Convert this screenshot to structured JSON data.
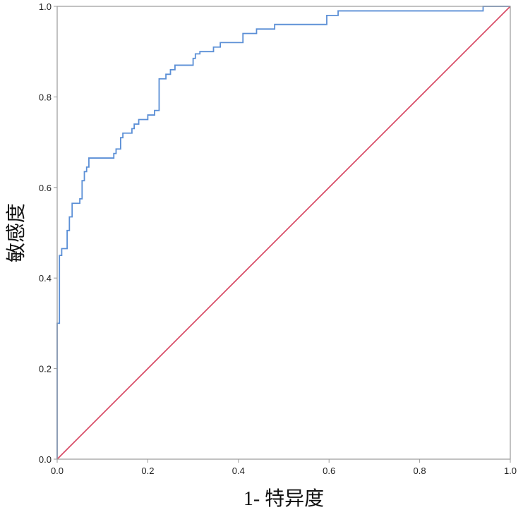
{
  "chart_data": {
    "type": "line",
    "title": "",
    "xlabel": "1- 特异度",
    "ylabel": "敏感度",
    "xlim": [
      0,
      1
    ],
    "ylim": [
      0,
      1
    ],
    "xticks": [
      "0.0",
      "0.2",
      "0.4",
      "0.6",
      "0.8",
      "1.0"
    ],
    "yticks": [
      "0.0",
      "0.2",
      "0.4",
      "0.6",
      "0.8",
      "1.0"
    ],
    "grid": false,
    "series": [
      {
        "color": "#5b8fd6",
        "step": true,
        "points": [
          [
            0.0,
            0.0
          ],
          [
            0.0,
            0.3
          ],
          [
            0.005,
            0.3
          ],
          [
            0.005,
            0.45
          ],
          [
            0.01,
            0.45
          ],
          [
            0.01,
            0.465
          ],
          [
            0.022,
            0.465
          ],
          [
            0.022,
            0.505
          ],
          [
            0.027,
            0.505
          ],
          [
            0.027,
            0.535
          ],
          [
            0.033,
            0.535
          ],
          [
            0.033,
            0.565
          ],
          [
            0.05,
            0.565
          ],
          [
            0.05,
            0.575
          ],
          [
            0.055,
            0.575
          ],
          [
            0.055,
            0.615
          ],
          [
            0.06,
            0.615
          ],
          [
            0.06,
            0.635
          ],
          [
            0.065,
            0.635
          ],
          [
            0.065,
            0.645
          ],
          [
            0.07,
            0.645
          ],
          [
            0.07,
            0.665
          ],
          [
            0.125,
            0.665
          ],
          [
            0.125,
            0.675
          ],
          [
            0.13,
            0.675
          ],
          [
            0.13,
            0.685
          ],
          [
            0.14,
            0.685
          ],
          [
            0.14,
            0.71
          ],
          [
            0.145,
            0.71
          ],
          [
            0.145,
            0.72
          ],
          [
            0.165,
            0.72
          ],
          [
            0.165,
            0.73
          ],
          [
            0.17,
            0.73
          ],
          [
            0.17,
            0.74
          ],
          [
            0.18,
            0.74
          ],
          [
            0.18,
            0.75
          ],
          [
            0.2,
            0.75
          ],
          [
            0.2,
            0.76
          ],
          [
            0.215,
            0.76
          ],
          [
            0.215,
            0.77
          ],
          [
            0.225,
            0.77
          ],
          [
            0.225,
            0.84
          ],
          [
            0.24,
            0.84
          ],
          [
            0.24,
            0.85
          ],
          [
            0.25,
            0.85
          ],
          [
            0.25,
            0.86
          ],
          [
            0.26,
            0.86
          ],
          [
            0.26,
            0.87
          ],
          [
            0.3,
            0.87
          ],
          [
            0.3,
            0.885
          ],
          [
            0.305,
            0.885
          ],
          [
            0.305,
            0.895
          ],
          [
            0.315,
            0.895
          ],
          [
            0.315,
            0.9
          ],
          [
            0.345,
            0.9
          ],
          [
            0.345,
            0.91
          ],
          [
            0.36,
            0.91
          ],
          [
            0.36,
            0.92
          ],
          [
            0.41,
            0.92
          ],
          [
            0.41,
            0.94
          ],
          [
            0.44,
            0.94
          ],
          [
            0.44,
            0.95
          ],
          [
            0.48,
            0.95
          ],
          [
            0.48,
            0.96
          ],
          [
            0.595,
            0.96
          ],
          [
            0.595,
            0.98
          ],
          [
            0.62,
            0.98
          ],
          [
            0.62,
            0.99
          ],
          [
            0.94,
            0.99
          ],
          [
            0.94,
            1.0
          ],
          [
            1.0,
            1.0
          ]
        ]
      },
      {
        "color": "#d9506a",
        "step": false,
        "points": [
          [
            0.0,
            0.0
          ],
          [
            1.0,
            1.0
          ]
        ]
      }
    ]
  }
}
